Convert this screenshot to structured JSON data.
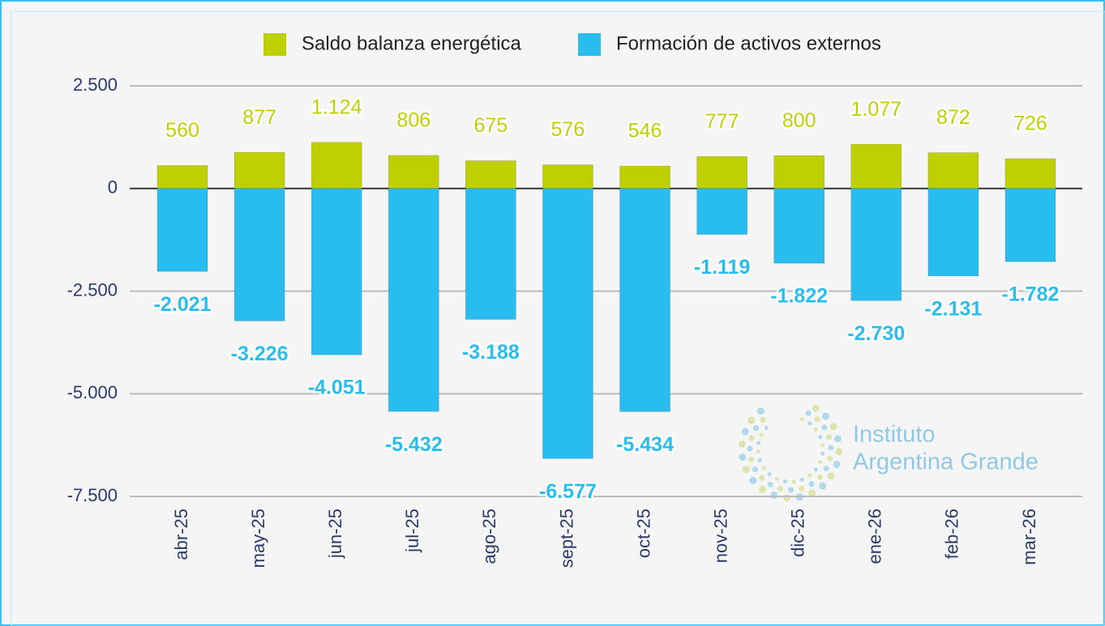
{
  "chart_data": {
    "type": "bar",
    "stacked": true,
    "categories": [
      "abr-25",
      "may-25",
      "jun-25",
      "jul-25",
      "ago-25",
      "sept-25",
      "oct-25",
      "nov-25",
      "dic-25",
      "ene-26",
      "feb-26",
      "mar-26"
    ],
    "series": [
      {
        "name": "Saldo balanza energética",
        "color": "#bfd000",
        "values": [
          560,
          877,
          1124,
          806,
          675,
          576,
          546,
          777,
          800,
          1077,
          872,
          726
        ],
        "value_labels": [
          "560",
          "877",
          "1.124",
          "806",
          "675",
          "576",
          "546",
          "777",
          "800",
          "1.077",
          "872",
          "726"
        ]
      },
      {
        "name": "Formación de activos externos",
        "color": "#29bdef",
        "values": [
          -2021,
          -3226,
          -4051,
          -5432,
          -3188,
          -6577,
          -5434,
          -1119,
          -1822,
          -2730,
          -2131,
          -1782
        ],
        "value_labels": [
          "-2.021",
          "-3.226",
          "-4.051",
          "-5.432",
          "-3.188",
          "-6.577",
          "-5.434",
          "-1.119",
          "-1.822",
          "-2.730",
          "-2.131",
          "-1.782"
        ]
      }
    ],
    "ylim": [
      -7500,
      2500
    ],
    "yticks": [
      {
        "value": -7500,
        "label": "-7.500"
      },
      {
        "value": -5000,
        "label": "-5.000"
      },
      {
        "value": -2500,
        "label": "-2.500"
      },
      0,
      {
        "value": 2500,
        "label": "2.500"
      }
    ],
    "grid": true,
    "legend": "top",
    "logo": [
      "Instituto",
      "Argentina Grande"
    ]
  }
}
